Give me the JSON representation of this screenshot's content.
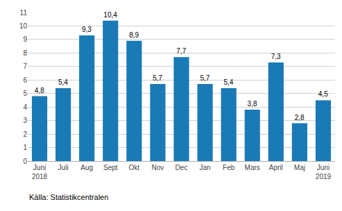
{
  "chart_data": {
    "type": "bar",
    "categories": [
      "Juni\n2018",
      "Juli",
      "Aug",
      "Sept",
      "Okt",
      "Nov",
      "Dec",
      "Jan",
      "Feb",
      "Mars",
      "April",
      "Maj",
      "Juni\n2019"
    ],
    "values": [
      4.8,
      5.4,
      9.3,
      10.4,
      8.9,
      5.7,
      7.7,
      5.7,
      5.4,
      3.8,
      7.3,
      2.8,
      4.5
    ],
    "value_labels": [
      "4,8",
      "5,4",
      "9,3",
      "10,4",
      "8,9",
      "5,7",
      "7,7",
      "5,7",
      "5,4",
      "3,8",
      "7,3",
      "2,8",
      "4,5"
    ],
    "data_labels": true,
    "color": "#1a7ab5",
    "ylim": [
      0,
      11
    ],
    "yticks": [
      0,
      1,
      2,
      3,
      4,
      5,
      6,
      7,
      8,
      9,
      10,
      11
    ],
    "grid": true,
    "annotations": [
      "Källa: Statistikcentralen"
    ]
  }
}
